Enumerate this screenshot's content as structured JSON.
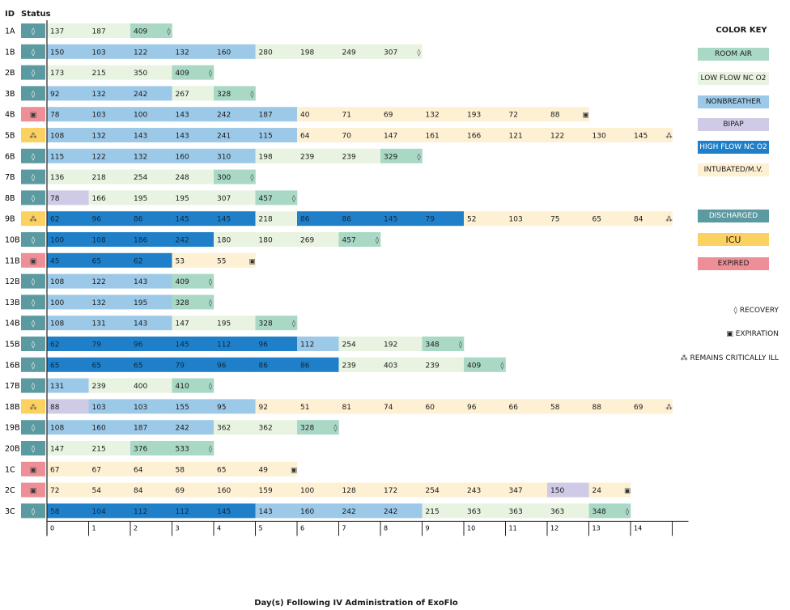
{
  "header": {
    "id_label": "ID",
    "status_label": "Status"
  },
  "color_key": {
    "title": "COLOR KEY",
    "items": [
      {
        "label": "ROOM AIR",
        "color": "#a9d8c5",
        "text_color": "#1a1a1a"
      },
      {
        "label": "LOW FLOW NC O2",
        "color": "#e9f3e1",
        "text_color": "#1a1a1a"
      },
      {
        "label": "NONBREATHER",
        "color": "#9cc9e8",
        "text_color": "#1a1a1a"
      },
      {
        "label": "BIPAP",
        "color": "#cfcae6",
        "text_color": "#1a1a1a"
      },
      {
        "label": "HIGH FLOW NC O2",
        "color": "#1f7fc8",
        "text_color": "#ffffff"
      },
      {
        "label": "INTUBATED/M.V.",
        "color": "#fdf0d3",
        "text_color": "#1a1a1a"
      },
      {
        "label": "DISCHARGED",
        "color": "#5b9aa0",
        "text_color": "#ffffff"
      },
      {
        "label": "ICU",
        "color": "#fbd261",
        "text_color": "#1a1a1a"
      },
      {
        "label": "EXPIRED",
        "color": "#ee8f97",
        "text_color": "#1a1a1a"
      }
    ],
    "symbols": [
      {
        "symbol": "◊",
        "label": "RECOVERY"
      },
      {
        "symbol": "▣",
        "label": "EXPIRATION"
      },
      {
        "symbol": "⁂",
        "label": "REMAINS CRITICALLY ILL"
      }
    ]
  },
  "chart_data": {
    "type": "table",
    "xlabel": "Day(s) Following IV Administration of ExoFlo",
    "x_ticks": [
      "0",
      "1",
      "2",
      "3",
      "4",
      "5",
      "6",
      "7",
      "8",
      "9",
      "10",
      "11",
      "12",
      "13",
      "14"
    ],
    "status_colors": {
      "D": "#5b9aa0",
      "I": "#fbd261",
      "E": "#ee8f97"
    },
    "status_symbols": {
      "D": "◊",
      "I": "⁂",
      "E": "▣"
    },
    "segment_colors": {
      "RA": "#a9d8c5",
      "LF": "#e9f3e1",
      "NB": "#9cc9e8",
      "BP": "#cfcae6",
      "HF": "#1f7fc8",
      "MV": "#fdf0d3"
    },
    "rows": [
      {
        "id": "1A",
        "status": "D",
        "values": [
          137,
          187,
          409
        ],
        "modes": [
          "LF",
          "LF",
          "RA"
        ],
        "end": "◊"
      },
      {
        "id": "1B",
        "status": "D",
        "values": [
          150,
          103,
          122,
          132,
          160,
          280,
          198,
          249,
          307
        ],
        "modes": [
          "NB",
          "NB",
          "NB",
          "NB",
          "NB",
          "LF",
          "LF",
          "LF",
          "LF"
        ],
        "end": "◊"
      },
      {
        "id": "2B",
        "status": "D",
        "values": [
          173,
          215,
          350,
          409
        ],
        "modes": [
          "LF",
          "LF",
          "LF",
          "RA"
        ],
        "end": "◊"
      },
      {
        "id": "3B",
        "status": "D",
        "values": [
          92,
          132,
          242,
          267,
          328
        ],
        "modes": [
          "NB",
          "NB",
          "NB",
          "LF",
          "RA"
        ],
        "end": "◊"
      },
      {
        "id": "4B",
        "status": "E",
        "values": [
          78,
          103,
          100,
          143,
          242,
          187,
          40,
          71,
          69,
          132,
          193,
          72,
          88
        ],
        "modes": [
          "NB",
          "NB",
          "NB",
          "NB",
          "NB",
          "NB",
          "MV",
          "MV",
          "MV",
          "MV",
          "MV",
          "MV",
          "MV"
        ],
        "end": "▣"
      },
      {
        "id": "5B",
        "status": "I",
        "values": [
          108,
          132,
          143,
          143,
          241,
          115,
          64,
          70,
          147,
          161,
          166,
          121,
          122,
          130,
          145
        ],
        "modes": [
          "NB",
          "NB",
          "NB",
          "NB",
          "NB",
          "NB",
          "MV",
          "MV",
          "MV",
          "MV",
          "MV",
          "MV",
          "MV",
          "MV",
          "MV"
        ],
        "end": "⁂"
      },
      {
        "id": "6B",
        "status": "D",
        "values": [
          115,
          122,
          132,
          160,
          310,
          198,
          239,
          239,
          329
        ],
        "modes": [
          "NB",
          "NB",
          "NB",
          "NB",
          "NB",
          "LF",
          "LF",
          "LF",
          "RA"
        ],
        "end": "◊"
      },
      {
        "id": "7B",
        "status": "D",
        "values": [
          136,
          218,
          254,
          248,
          300
        ],
        "modes": [
          "LF",
          "LF",
          "LF",
          "LF",
          "RA"
        ],
        "end": "◊"
      },
      {
        "id": "8B",
        "status": "D",
        "values": [
          78,
          166,
          195,
          195,
          307,
          457
        ],
        "modes": [
          "BP",
          "LF",
          "LF",
          "LF",
          "LF",
          "RA"
        ],
        "end": "◊"
      },
      {
        "id": "9B",
        "status": "I",
        "values": [
          62,
          96,
          86,
          145,
          145,
          218,
          86,
          86,
          145,
          79,
          52,
          103,
          75,
          65,
          84
        ],
        "modes": [
          "HF",
          "HF",
          "HF",
          "HF",
          "HF",
          "LF",
          "HF",
          "HF",
          "HF",
          "HF",
          "MV",
          "MV",
          "MV",
          "MV",
          "MV"
        ],
        "end": "⁂"
      },
      {
        "id": "10B",
        "status": "D",
        "values": [
          100,
          108,
          186,
          242,
          180,
          180,
          269,
          457
        ],
        "modes": [
          "HF",
          "HF",
          "HF",
          "HF",
          "LF",
          "LF",
          "LF",
          "RA"
        ],
        "end": "◊"
      },
      {
        "id": "11B",
        "status": "E",
        "values": [
          45,
          65,
          62,
          53,
          55
        ],
        "modes": [
          "HF",
          "HF",
          "HF",
          "MV",
          "MV"
        ],
        "end": "▣"
      },
      {
        "id": "12B",
        "status": "D",
        "values": [
          108,
          122,
          143,
          409
        ],
        "modes": [
          "NB",
          "NB",
          "NB",
          "RA"
        ],
        "end": "◊"
      },
      {
        "id": "13B",
        "status": "D",
        "values": [
          100,
          132,
          195,
          328
        ],
        "modes": [
          "NB",
          "NB",
          "NB",
          "RA"
        ],
        "end": "◊"
      },
      {
        "id": "14B",
        "status": "D",
        "values": [
          108,
          131,
          143,
          147,
          195,
          328
        ],
        "modes": [
          "NB",
          "NB",
          "NB",
          "LF",
          "LF",
          "RA"
        ],
        "end": "◊"
      },
      {
        "id": "15B",
        "status": "D",
        "values": [
          62,
          79,
          96,
          145,
          112,
          96,
          112,
          254,
          192,
          348
        ],
        "modes": [
          "HF",
          "HF",
          "HF",
          "HF",
          "HF",
          "HF",
          "NB",
          "LF",
          "LF",
          "RA"
        ],
        "end": "◊"
      },
      {
        "id": "16B",
        "status": "D",
        "values": [
          65,
          65,
          65,
          79,
          96,
          86,
          86,
          239,
          403,
          239,
          409
        ],
        "modes": [
          "HF",
          "HF",
          "HF",
          "HF",
          "HF",
          "HF",
          "HF",
          "LF",
          "LF",
          "LF",
          "RA"
        ],
        "end": "◊"
      },
      {
        "id": "17B",
        "status": "D",
        "values": [
          131,
          239,
          400,
          410
        ],
        "modes": [
          "NB",
          "LF",
          "LF",
          "RA"
        ],
        "end": "◊"
      },
      {
        "id": "18B",
        "status": "I",
        "values": [
          88,
          103,
          103,
          155,
          95,
          92,
          51,
          81,
          74,
          60,
          96,
          66,
          58,
          88,
          69
        ],
        "modes": [
          "BP",
          "NB",
          "NB",
          "NB",
          "NB",
          "MV",
          "MV",
          "MV",
          "MV",
          "MV",
          "MV",
          "MV",
          "MV",
          "MV",
          "MV"
        ],
        "end": "⁂"
      },
      {
        "id": "19B",
        "status": "D",
        "values": [
          108,
          160,
          187,
          242,
          362,
          362,
          328
        ],
        "modes": [
          "NB",
          "NB",
          "NB",
          "NB",
          "LF",
          "LF",
          "RA"
        ],
        "end": "◊"
      },
      {
        "id": "20B",
        "status": "D",
        "values": [
          147,
          215,
          376,
          533
        ],
        "modes": [
          "LF",
          "LF",
          "RA",
          "RA"
        ],
        "end": "◊"
      },
      {
        "id": "1C",
        "status": "E",
        "values": [
          67,
          67,
          64,
          58,
          65,
          49
        ],
        "modes": [
          "MV",
          "MV",
          "MV",
          "MV",
          "MV",
          "MV"
        ],
        "end": "▣"
      },
      {
        "id": "2C",
        "status": "E",
        "values": [
          72,
          54,
          84,
          69,
          160,
          159,
          100,
          128,
          172,
          254,
          243,
          347,
          150,
          24
        ],
        "modes": [
          "MV",
          "MV",
          "MV",
          "MV",
          "MV",
          "MV",
          "MV",
          "MV",
          "MV",
          "MV",
          "MV",
          "MV",
          "BP",
          "MV"
        ],
        "end": "▣"
      },
      {
        "id": "3C",
        "status": "D",
        "values": [
          58,
          104,
          112,
          112,
          145,
          143,
          160,
          242,
          242,
          215,
          363,
          363,
          363,
          348
        ],
        "modes": [
          "HF",
          "HF",
          "HF",
          "HF",
          "HF",
          "NB",
          "NB",
          "NB",
          "NB",
          "LF",
          "LF",
          "LF",
          "LF",
          "RA"
        ],
        "end": "◊"
      }
    ]
  }
}
